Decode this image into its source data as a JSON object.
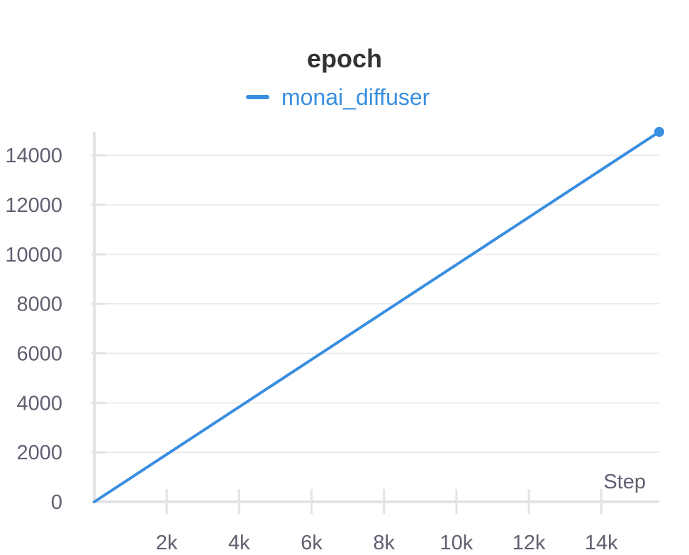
{
  "chart_data": {
    "type": "line",
    "title": "epoch",
    "xlabel": "Step",
    "ylabel": "",
    "legend": "top-center",
    "grid": true,
    "x_ticks": [
      2000,
      4000,
      6000,
      8000,
      10000,
      12000,
      14000
    ],
    "x_tick_labels": [
      "2k",
      "4k",
      "6k",
      "8k",
      "10k",
      "12k",
      "14k"
    ],
    "y_ticks": [
      0,
      2000,
      4000,
      6000,
      8000,
      10000,
      12000,
      14000
    ],
    "y_tick_labels": [
      "0",
      "2000",
      "4000",
      "6000",
      "8000",
      "10000",
      "12000",
      "14000"
    ],
    "xlim": [
      0,
      15600
    ],
    "ylim": [
      0,
      14950
    ],
    "series": [
      {
        "name": "monai_diffuser",
        "color": "#3a8ee0",
        "x": [
          0,
          15600
        ],
        "y": [
          0,
          14950
        ]
      }
    ]
  }
}
